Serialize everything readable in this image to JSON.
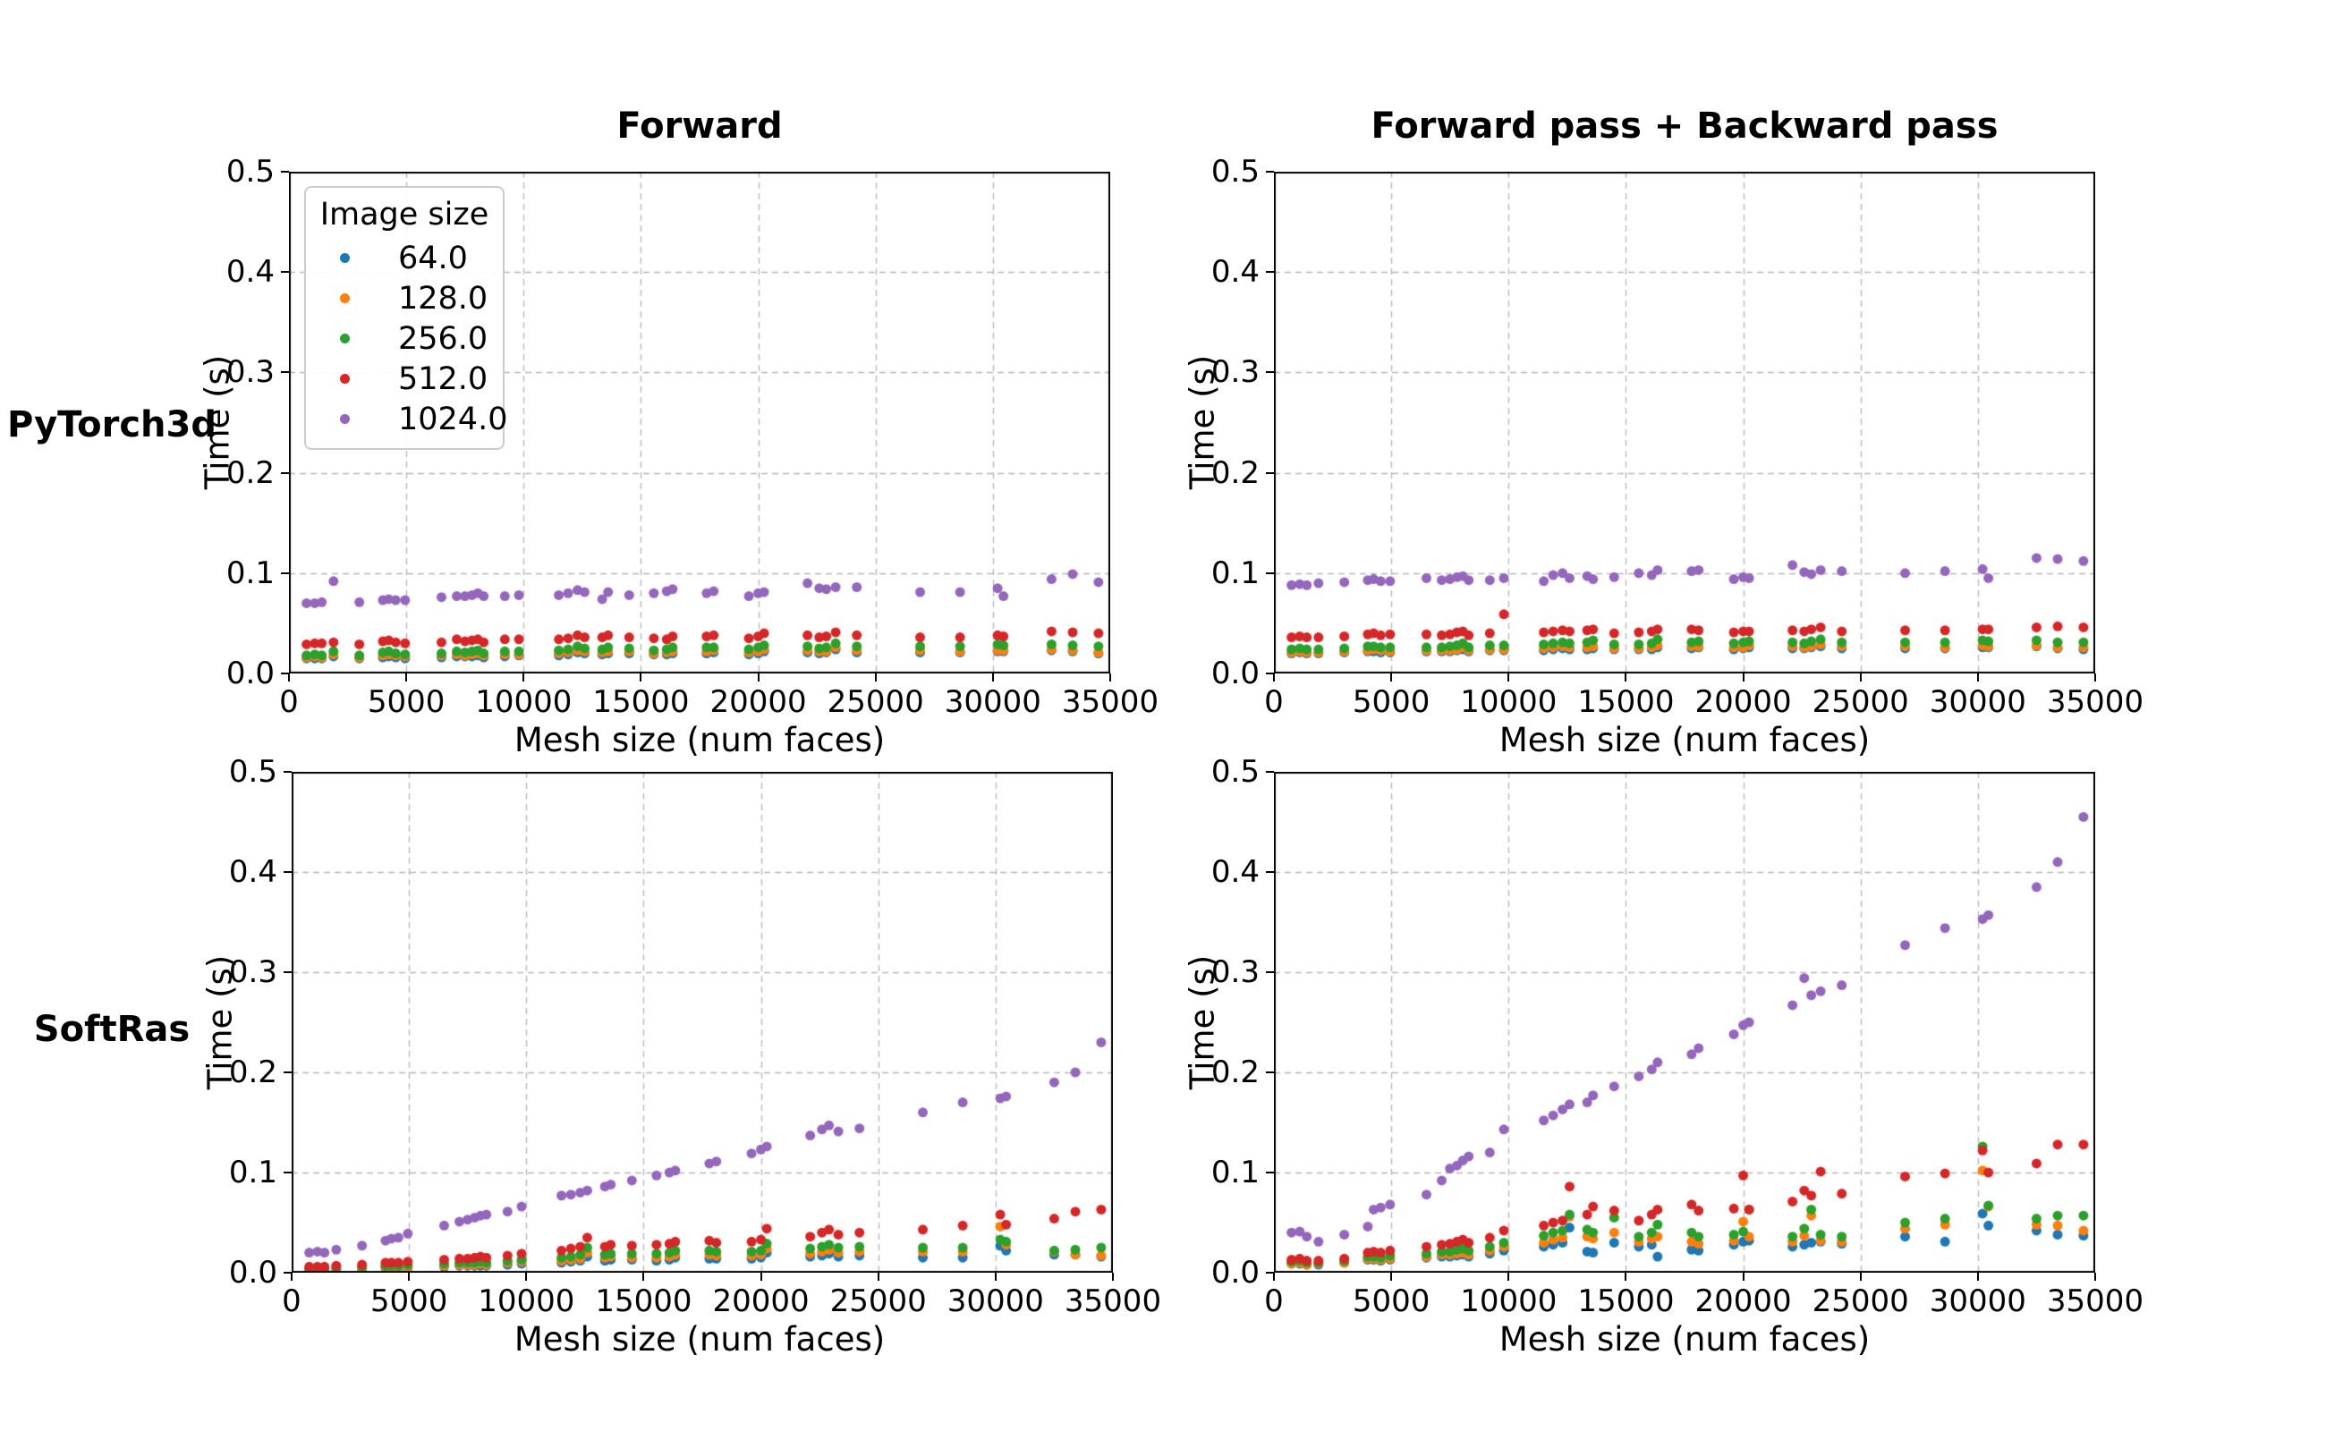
{
  "layout": {
    "row_labels": [
      "PyTorch3d",
      "SoftRas"
    ],
    "col_titles": [
      "Forward",
      "Forward pass + Backward pass"
    ]
  },
  "chart_data": {
    "type": "scatter",
    "grid": true,
    "grid_style": "dashed",
    "xlabel": "Mesh size (num faces)",
    "ylabel": "Time (s)",
    "xlim": [
      0,
      35000
    ],
    "ylim": [
      0.0,
      0.5
    ],
    "xticks": [
      0,
      5000,
      10000,
      15000,
      20000,
      25000,
      30000,
      35000
    ],
    "xtick_labels": [
      "0",
      "5000",
      "10000",
      "15000",
      "20000",
      "25000",
      "30000",
      "35000"
    ],
    "yticks": [
      0.0,
      0.1,
      0.2,
      0.3,
      0.4,
      0.5
    ],
    "ytick_labels": [
      "0.0",
      "0.1",
      "0.2",
      "0.3",
      "0.4",
      "0.5"
    ],
    "legend": {
      "title": "Image size",
      "position": "upper-left of first subplot",
      "entries": [
        {
          "label": "64.0",
          "color": "#1f77b4"
        },
        {
          "label": "128.0",
          "color": "#ff7f0e"
        },
        {
          "label": "256.0",
          "color": "#2ca02c"
        },
        {
          "label": "512.0",
          "color": "#d62728"
        },
        {
          "label": "1024.0",
          "color": "#9467bd"
        }
      ]
    },
    "mesh_sizes": [
      750,
      1100,
      1400,
      1900,
      3000,
      4000,
      4250,
      4550,
      4950,
      6500,
      7150,
      7500,
      7800,
      8050,
      8300,
      9200,
      9800,
      11500,
      11900,
      12300,
      12600,
      13350,
      13600,
      14500,
      15550,
      16100,
      16350,
      17800,
      18100,
      19600,
      20000,
      20250,
      22100,
      22600,
      22900,
      23300,
      24200,
      26900,
      28600,
      30200,
      30450,
      32500,
      33400,
      34500
    ],
    "subplots": [
      {
        "id": "pytorch3d-forward",
        "row_label": "PyTorch3d",
        "col_title": "Forward",
        "series": {
          "64.0": [
            0.015,
            0.015,
            0.015,
            0.017,
            0.015,
            0.016,
            0.017,
            0.016,
            0.015,
            0.016,
            0.017,
            0.017,
            0.017,
            0.018,
            0.016,
            0.017,
            0.018,
            0.018,
            0.019,
            0.021,
            0.02,
            0.019,
            0.02,
            0.02,
            0.019,
            0.019,
            0.02,
            0.02,
            0.021,
            0.019,
            0.02,
            0.022,
            0.021,
            0.02,
            0.021,
            0.024,
            0.021,
            0.021,
            0.021,
            0.022,
            0.022,
            0.023,
            0.022,
            0.02
          ],
          "128.0": [
            0.016,
            0.017,
            0.016,
            0.019,
            0.016,
            0.018,
            0.019,
            0.018,
            0.017,
            0.018,
            0.019,
            0.018,
            0.019,
            0.02,
            0.018,
            0.019,
            0.019,
            0.02,
            0.021,
            0.023,
            0.022,
            0.021,
            0.022,
            0.022,
            0.02,
            0.021,
            0.022,
            0.022,
            0.023,
            0.021,
            0.022,
            0.024,
            0.023,
            0.022,
            0.022,
            0.026,
            0.023,
            0.023,
            0.022,
            0.023,
            0.023,
            0.024,
            0.023,
            0.021
          ],
          "256.0": [
            0.018,
            0.019,
            0.018,
            0.022,
            0.018,
            0.021,
            0.022,
            0.02,
            0.019,
            0.02,
            0.022,
            0.021,
            0.022,
            0.023,
            0.02,
            0.022,
            0.022,
            0.023,
            0.024,
            0.027,
            0.025,
            0.024,
            0.026,
            0.025,
            0.023,
            0.024,
            0.026,
            0.026,
            0.026,
            0.024,
            0.026,
            0.028,
            0.027,
            0.025,
            0.026,
            0.03,
            0.027,
            0.027,
            0.027,
            0.029,
            0.028,
            0.029,
            0.028,
            0.027
          ],
          "512.0": [
            0.029,
            0.03,
            0.03,
            0.031,
            0.029,
            0.032,
            0.033,
            0.031,
            0.03,
            0.031,
            0.034,
            0.032,
            0.033,
            0.034,
            0.031,
            0.034,
            0.034,
            0.034,
            0.035,
            0.038,
            0.036,
            0.036,
            0.038,
            0.036,
            0.035,
            0.034,
            0.037,
            0.037,
            0.038,
            0.035,
            0.037,
            0.04,
            0.038,
            0.036,
            0.037,
            0.041,
            0.038,
            0.036,
            0.036,
            0.038,
            0.037,
            0.042,
            0.041,
            0.04
          ],
          "1024.0": [
            0.07,
            0.07,
            0.071,
            0.092,
            0.071,
            0.073,
            0.074,
            0.073,
            0.073,
            0.076,
            0.077,
            0.077,
            0.078,
            0.08,
            0.077,
            0.077,
            0.078,
            0.078,
            0.08,
            0.083,
            0.081,
            0.074,
            0.081,
            0.078,
            0.08,
            0.082,
            0.084,
            0.08,
            0.082,
            0.077,
            0.08,
            0.081,
            0.09,
            0.085,
            0.084,
            0.086,
            0.086,
            0.081,
            0.081,
            0.085,
            0.077,
            0.094,
            0.099,
            0.091
          ]
        }
      },
      {
        "id": "pytorch3d-forward-backward",
        "row_label": "PyTorch3d",
        "col_title": "Forward pass + Backward pass",
        "series": {
          "64.0": [
            0.02,
            0.021,
            0.02,
            0.02,
            0.021,
            0.022,
            0.022,
            0.021,
            0.021,
            0.022,
            0.022,
            0.022,
            0.023,
            0.024,
            0.022,
            0.023,
            0.023,
            0.023,
            0.024,
            0.025,
            0.024,
            0.024,
            0.025,
            0.024,
            0.024,
            0.024,
            0.026,
            0.025,
            0.026,
            0.024,
            0.025,
            0.026,
            0.025,
            0.025,
            0.026,
            0.027,
            0.025,
            0.025,
            0.025,
            0.026,
            0.026,
            0.027,
            0.025,
            0.024
          ],
          "128.0": [
            0.021,
            0.022,
            0.021,
            0.021,
            0.022,
            0.023,
            0.024,
            0.023,
            0.022,
            0.023,
            0.023,
            0.023,
            0.024,
            0.026,
            0.023,
            0.024,
            0.024,
            0.025,
            0.026,
            0.027,
            0.026,
            0.026,
            0.027,
            0.025,
            0.025,
            0.026,
            0.028,
            0.027,
            0.027,
            0.026,
            0.026,
            0.028,
            0.027,
            0.026,
            0.027,
            0.029,
            0.027,
            0.027,
            0.026,
            0.028,
            0.027,
            0.028,
            0.026,
            0.026
          ],
          "256.0": [
            0.024,
            0.025,
            0.024,
            0.024,
            0.025,
            0.027,
            0.027,
            0.026,
            0.026,
            0.026,
            0.026,
            0.027,
            0.028,
            0.03,
            0.026,
            0.028,
            0.028,
            0.029,
            0.03,
            0.031,
            0.03,
            0.031,
            0.033,
            0.029,
            0.029,
            0.03,
            0.034,
            0.031,
            0.032,
            0.03,
            0.031,
            0.032,
            0.031,
            0.03,
            0.032,
            0.034,
            0.031,
            0.031,
            0.031,
            0.033,
            0.032,
            0.033,
            0.031,
            0.031
          ],
          "512.0": [
            0.036,
            0.037,
            0.036,
            0.036,
            0.037,
            0.039,
            0.04,
            0.038,
            0.039,
            0.039,
            0.038,
            0.039,
            0.041,
            0.042,
            0.038,
            0.04,
            0.059,
            0.041,
            0.042,
            0.043,
            0.042,
            0.043,
            0.044,
            0.04,
            0.041,
            0.042,
            0.044,
            0.044,
            0.043,
            0.041,
            0.042,
            0.042,
            0.043,
            0.042,
            0.044,
            0.046,
            0.042,
            0.043,
            0.043,
            0.044,
            0.044,
            0.046,
            0.047,
            0.046
          ],
          "1024.0": [
            0.088,
            0.089,
            0.088,
            0.09,
            0.091,
            0.093,
            0.094,
            0.092,
            0.092,
            0.095,
            0.093,
            0.094,
            0.096,
            0.097,
            0.093,
            0.093,
            0.095,
            0.092,
            0.098,
            0.1,
            0.095,
            0.097,
            0.094,
            0.096,
            0.1,
            0.098,
            0.103,
            0.102,
            0.103,
            0.094,
            0.096,
            0.095,
            0.108,
            0.101,
            0.099,
            0.103,
            0.102,
            0.1,
            0.102,
            0.104,
            0.095,
            0.115,
            0.114,
            0.112
          ]
        }
      },
      {
        "id": "softras-forward",
        "row_label": "SoftRas",
        "col_title": "Forward",
        "series": {
          "64.0": [
            0.003,
            0.003,
            0.003,
            0.003,
            0.004,
            0.005,
            0.005,
            0.005,
            0.005,
            0.006,
            0.007,
            0.007,
            0.007,
            0.007,
            0.007,
            0.008,
            0.009,
            0.01,
            0.011,
            0.012,
            0.016,
            0.012,
            0.013,
            0.013,
            0.012,
            0.013,
            0.015,
            0.014,
            0.014,
            0.014,
            0.015,
            0.02,
            0.016,
            0.017,
            0.019,
            0.016,
            0.017,
            0.015,
            0.015,
            0.027,
            0.022,
            0.018,
            0.018,
            0.016
          ],
          "128.0": [
            0.003,
            0.003,
            0.003,
            0.004,
            0.005,
            0.006,
            0.006,
            0.006,
            0.006,
            0.007,
            0.008,
            0.008,
            0.008,
            0.009,
            0.008,
            0.01,
            0.011,
            0.012,
            0.013,
            0.014,
            0.02,
            0.015,
            0.016,
            0.015,
            0.015,
            0.016,
            0.018,
            0.018,
            0.017,
            0.017,
            0.018,
            0.024,
            0.019,
            0.021,
            0.023,
            0.02,
            0.021,
            0.021,
            0.021,
            0.046,
            0.028,
            0.021,
            0.018,
            0.017
          ],
          "256.0": [
            0.004,
            0.004,
            0.004,
            0.005,
            0.006,
            0.007,
            0.007,
            0.007,
            0.008,
            0.009,
            0.01,
            0.01,
            0.01,
            0.011,
            0.01,
            0.012,
            0.013,
            0.015,
            0.016,
            0.018,
            0.025,
            0.018,
            0.019,
            0.019,
            0.019,
            0.02,
            0.022,
            0.022,
            0.021,
            0.021,
            0.022,
            0.029,
            0.024,
            0.026,
            0.028,
            0.025,
            0.026,
            0.025,
            0.025,
            0.033,
            0.031,
            0.022,
            0.023,
            0.025
          ],
          "512.0": [
            0.006,
            0.006,
            0.006,
            0.007,
            0.008,
            0.01,
            0.01,
            0.01,
            0.011,
            0.013,
            0.014,
            0.014,
            0.015,
            0.016,
            0.015,
            0.017,
            0.019,
            0.022,
            0.024,
            0.026,
            0.035,
            0.026,
            0.028,
            0.027,
            0.028,
            0.029,
            0.031,
            0.032,
            0.03,
            0.031,
            0.033,
            0.044,
            0.036,
            0.04,
            0.043,
            0.038,
            0.04,
            0.043,
            0.047,
            0.058,
            0.048,
            0.054,
            0.061,
            0.063
          ],
          "1024.0": [
            0.02,
            0.021,
            0.02,
            0.023,
            0.027,
            0.032,
            0.034,
            0.035,
            0.039,
            0.047,
            0.051,
            0.053,
            0.055,
            0.057,
            0.058,
            0.061,
            0.066,
            0.077,
            0.078,
            0.08,
            0.082,
            0.086,
            0.088,
            0.092,
            0.097,
            0.1,
            0.102,
            0.109,
            0.111,
            0.119,
            0.123,
            0.126,
            0.137,
            0.143,
            0.147,
            0.141,
            0.144,
            0.16,
            0.17,
            0.174,
            0.176,
            0.19,
            0.2,
            0.23
          ]
        }
      },
      {
        "id": "softras-forward-backward",
        "row_label": "SoftRas",
        "col_title": "Forward pass + Backward pass",
        "series": {
          "64.0": [
            0.009,
            0.009,
            0.008,
            0.008,
            0.01,
            0.013,
            0.013,
            0.012,
            0.013,
            0.015,
            0.016,
            0.016,
            0.017,
            0.018,
            0.016,
            0.019,
            0.022,
            0.026,
            0.028,
            0.03,
            0.045,
            0.021,
            0.02,
            0.03,
            0.026,
            0.028,
            0.016,
            0.023,
            0.022,
            0.028,
            0.031,
            0.032,
            0.026,
            0.028,
            0.03,
            0.031,
            0.029,
            0.036,
            0.031,
            0.059,
            0.047,
            0.042,
            0.038,
            0.037
          ],
          "128.0": [
            0.009,
            0.01,
            0.008,
            0.009,
            0.01,
            0.014,
            0.014,
            0.013,
            0.014,
            0.016,
            0.018,
            0.018,
            0.019,
            0.02,
            0.018,
            0.022,
            0.026,
            0.03,
            0.033,
            0.035,
            0.056,
            0.036,
            0.034,
            0.04,
            0.031,
            0.034,
            0.036,
            0.031,
            0.029,
            0.032,
            0.051,
            0.036,
            0.031,
            0.037,
            0.057,
            0.032,
            0.031,
            0.044,
            0.048,
            0.102,
            0.066,
            0.048,
            0.047,
            0.042
          ],
          "256.0": [
            0.011,
            0.012,
            0.01,
            0.01,
            0.012,
            0.016,
            0.016,
            0.015,
            0.017,
            0.019,
            0.021,
            0.021,
            0.023,
            0.024,
            0.022,
            0.026,
            0.03,
            0.037,
            0.04,
            0.042,
            0.058,
            0.043,
            0.04,
            0.055,
            0.036,
            0.04,
            0.048,
            0.04,
            0.036,
            0.038,
            0.041,
            0.063,
            0.036,
            0.044,
            0.063,
            0.038,
            0.036,
            0.05,
            0.054,
            0.126,
            0.067,
            0.054,
            0.057,
            0.057
          ],
          "512.0": [
            0.013,
            0.014,
            0.012,
            0.012,
            0.014,
            0.02,
            0.021,
            0.02,
            0.022,
            0.026,
            0.028,
            0.029,
            0.031,
            0.033,
            0.03,
            0.035,
            0.042,
            0.047,
            0.05,
            0.052,
            0.086,
            0.058,
            0.066,
            0.062,
            0.052,
            0.058,
            0.063,
            0.068,
            0.062,
            0.064,
            0.097,
            0.063,
            0.071,
            0.082,
            0.077,
            0.101,
            0.079,
            0.096,
            0.099,
            0.122,
            0.1,
            0.109,
            0.128,
            0.128
          ],
          "1024.0": [
            0.04,
            0.041,
            0.036,
            0.031,
            0.038,
            0.046,
            0.063,
            0.065,
            0.068,
            0.078,
            0.092,
            0.104,
            0.107,
            0.112,
            0.116,
            0.12,
            0.143,
            0.152,
            0.157,
            0.163,
            0.168,
            0.17,
            0.177,
            0.186,
            0.196,
            0.203,
            0.21,
            0.218,
            0.224,
            0.238,
            0.247,
            0.25,
            0.267,
            0.294,
            0.277,
            0.281,
            0.287,
            0.327,
            0.344,
            0.353,
            0.357,
            0.385,
            0.41,
            0.455
          ]
        }
      }
    ]
  }
}
